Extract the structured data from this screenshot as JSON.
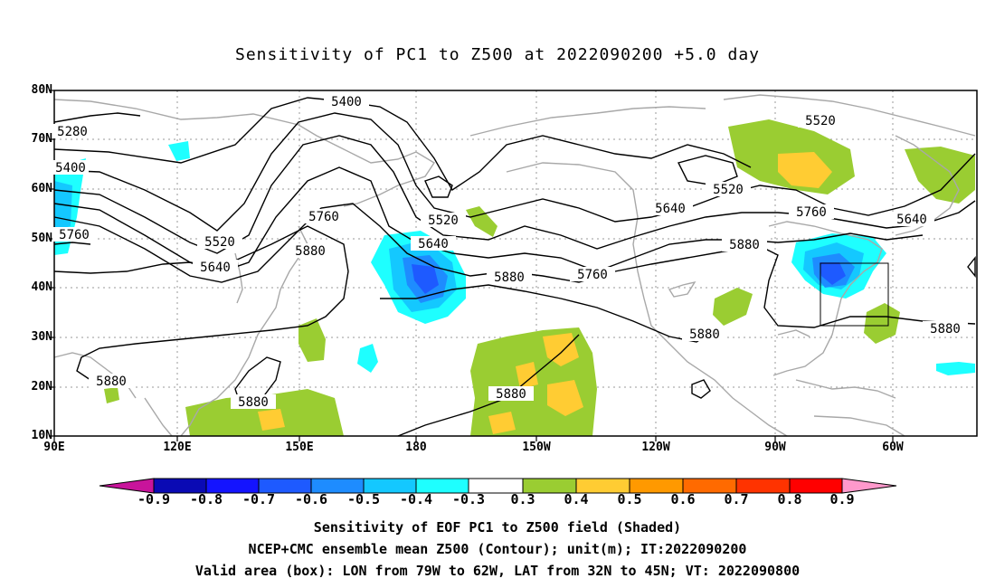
{
  "title": "Sensitivity of PC1 to Z500 at 2022090200 +5.0 day",
  "lat_labels": [
    "80N",
    "70N",
    "60N",
    "50N",
    "40N",
    "30N",
    "20N",
    "10N"
  ],
  "lon_labels": [
    "90E",
    "120E",
    "150E",
    "180",
    "150W",
    "120W",
    "90W",
    "60W"
  ],
  "contour_labels": [
    {
      "text": "5400"
    },
    {
      "text": "5280"
    },
    {
      "text": "5400"
    },
    {
      "text": "5760"
    },
    {
      "text": "5520"
    },
    {
      "text": "5640"
    },
    {
      "text": "5760"
    },
    {
      "text": "5880"
    },
    {
      "text": "5520"
    },
    {
      "text": "5640"
    },
    {
      "text": "5880"
    },
    {
      "text": "5760"
    },
    {
      "text": "5640"
    },
    {
      "text": "5520"
    },
    {
      "text": "5520"
    },
    {
      "text": "5760"
    },
    {
      "text": "5640"
    },
    {
      "text": "5880"
    },
    {
      "text": "5880"
    },
    {
      "text": "5880"
    },
    {
      "text": "5880"
    },
    {
      "text": "5880"
    },
    {
      "text": "5880"
    }
  ],
  "colorbar": {
    "labels": [
      "-0.9",
      "-0.8",
      "-0.7",
      "-0.6",
      "-0.5",
      "-0.4",
      "-0.3",
      "0.3",
      "0.4",
      "0.5",
      "0.6",
      "0.7",
      "0.8",
      "0.9"
    ],
    "colors": [
      "#c8149b",
      "#0a0ab4",
      "#1414ff",
      "#1e5aff",
      "#1e8cff",
      "#14c8ff",
      "#1effff",
      "#ffffff",
      "#9acd32",
      "#ffcc33",
      "#ff9900",
      "#ff6a00",
      "#ff3300",
      "#ff0000",
      "#ff99cc"
    ]
  },
  "valid_box": {
    "lon_west": -79,
    "lon_east": -62,
    "lat_south": 32,
    "lat_north": 45
  },
  "captions": [
    "Sensitivity of EOF PC1 to Z500 field (Shaded)",
    "NCEP+CMC ensemble mean Z500 (Contour); unit(m); IT:2022090200",
    "Valid area (box): LON from 79W to 62W, LAT from 32N to 45N; VT: 2022090800"
  ]
}
